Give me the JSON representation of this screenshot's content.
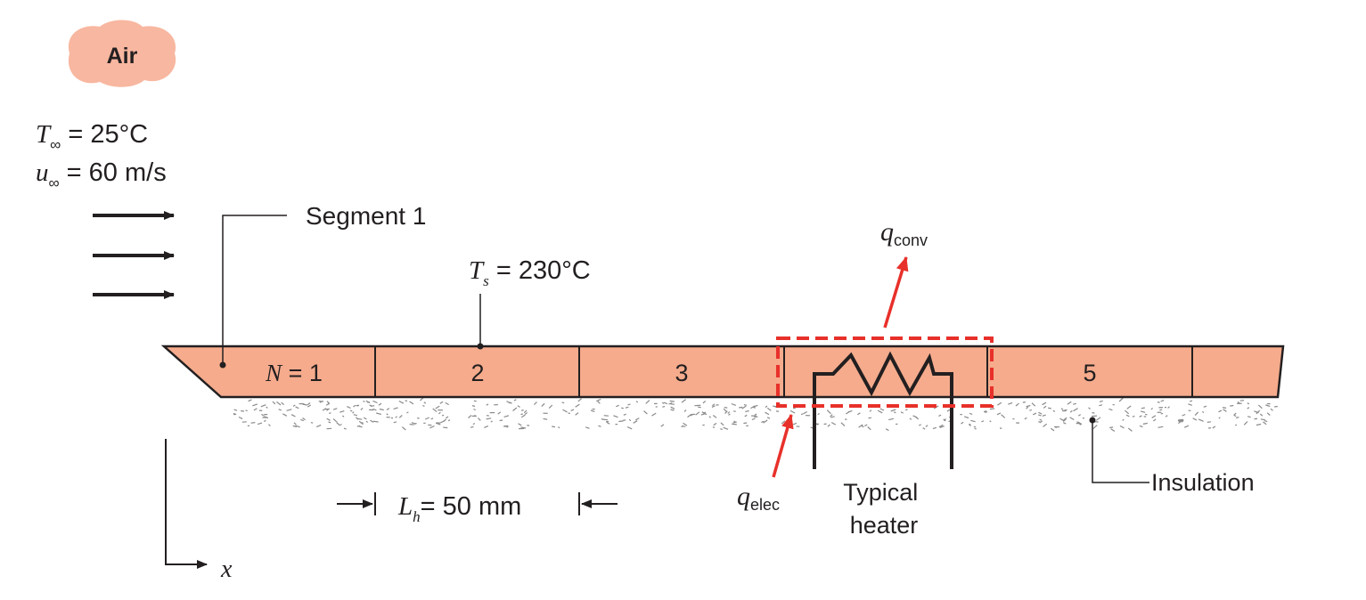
{
  "colors": {
    "plate_fill": "#f5ab8c",
    "plate_stroke": "#231f20",
    "air_cloud": "#f8b7a0",
    "accent_red": "#e8302a",
    "insulation_speckle": "#8a8a8a"
  },
  "air": {
    "label": "Air",
    "t_inf": {
      "symbol": "T",
      "subscript": "∞",
      "value": " = 25°C"
    },
    "u_inf": {
      "symbol": "u",
      "subscript": "∞",
      "value": " = 60 m/s"
    }
  },
  "segment_label": "Segment 1",
  "surface_temp": {
    "symbol": "T",
    "subscript": "s",
    "value": " = 230°C"
  },
  "segments": [
    {
      "symbol": "N",
      "label": " = 1"
    },
    {
      "label": "2"
    },
    {
      "label": "3"
    },
    {
      "label": ""
    },
    {
      "label": "5"
    },
    {
      "label": ""
    }
  ],
  "heater_length": {
    "symbol": "L",
    "subscript": "h",
    "value": "= 50 mm"
  },
  "q_conv": {
    "symbol": "q",
    "subscript": "conv"
  },
  "q_elec": {
    "symbol": "q",
    "subscript": "elec"
  },
  "typical_heater": [
    "Typical",
    "heater"
  ],
  "insulation_label": "Insulation",
  "axis_label": "x"
}
